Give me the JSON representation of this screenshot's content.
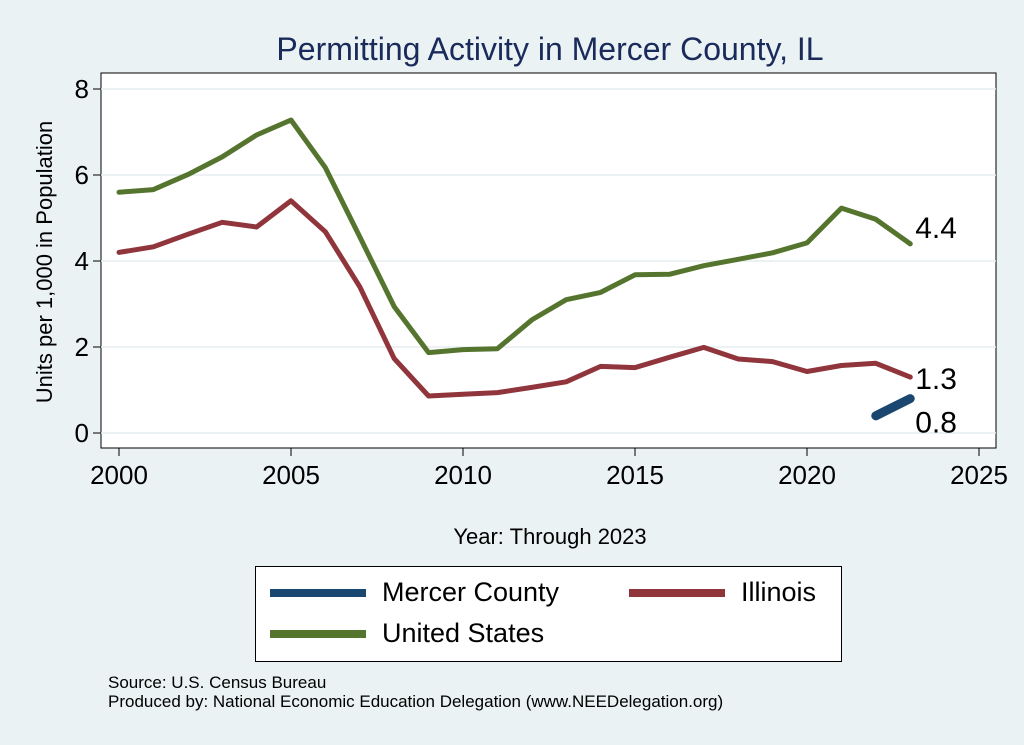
{
  "chart_data": {
    "type": "line",
    "title": "Permitting Activity in Mercer County, IL",
    "xlabel": "Year: Through 2023",
    "ylabel": "Units per 1,000 in Population",
    "xlim": [
      2000,
      2025
    ],
    "ylim": [
      0,
      8
    ],
    "xticks": [
      2000,
      2005,
      2010,
      2015,
      2020,
      2025
    ],
    "yticks": [
      0,
      2,
      4,
      6,
      8
    ],
    "grid": true,
    "legend_position": "bottom",
    "series": [
      {
        "name": "Mercer County",
        "color": "#1a476f",
        "x": [
          2022,
          2023
        ],
        "values": [
          0.4,
          0.8
        ],
        "end_label": "0.8"
      },
      {
        "name": "Illinois",
        "color": "#90353b",
        "x": [
          2000,
          2001,
          2002,
          2003,
          2004,
          2005,
          2006,
          2007,
          2008,
          2009,
          2010,
          2011,
          2012,
          2013,
          2014,
          2015,
          2016,
          2017,
          2018,
          2019,
          2020,
          2021,
          2022,
          2023
        ],
        "values": [
          4.2,
          4.33,
          4.62,
          4.9,
          4.79,
          5.4,
          4.68,
          3.4,
          1.73,
          0.86,
          0.9,
          0.94,
          1.06,
          1.19,
          1.55,
          1.52,
          1.76,
          1.99,
          1.72,
          1.66,
          1.43,
          1.57,
          1.62,
          1.3
        ],
        "end_label": "1.3"
      },
      {
        "name": "United States",
        "color": "#55752f",
        "x": [
          2000,
          2001,
          2002,
          2003,
          2004,
          2005,
          2006,
          2007,
          2008,
          2009,
          2010,
          2011,
          2012,
          2013,
          2014,
          2015,
          2016,
          2017,
          2018,
          2019,
          2020,
          2021,
          2022,
          2023
        ],
        "values": [
          5.6,
          5.66,
          6.01,
          6.42,
          6.93,
          7.28,
          6.17,
          4.56,
          2.94,
          1.87,
          1.94,
          1.96,
          2.63,
          3.1,
          3.27,
          3.68,
          3.69,
          3.89,
          4.04,
          4.19,
          4.42,
          5.23,
          4.97,
          4.4
        ],
        "end_label": "4.4"
      }
    ]
  },
  "legend": {
    "items": [
      {
        "label": "Mercer County",
        "color": "#1a476f"
      },
      {
        "label": "Illinois",
        "color": "#90353b"
      },
      {
        "label": "United States",
        "color": "#55752f"
      }
    ]
  },
  "notes": {
    "source": "Source: U.S. Census Bureau",
    "produced_by": "Produced by: National Economic Education Delegation (www.NEEDelegation.org)"
  }
}
